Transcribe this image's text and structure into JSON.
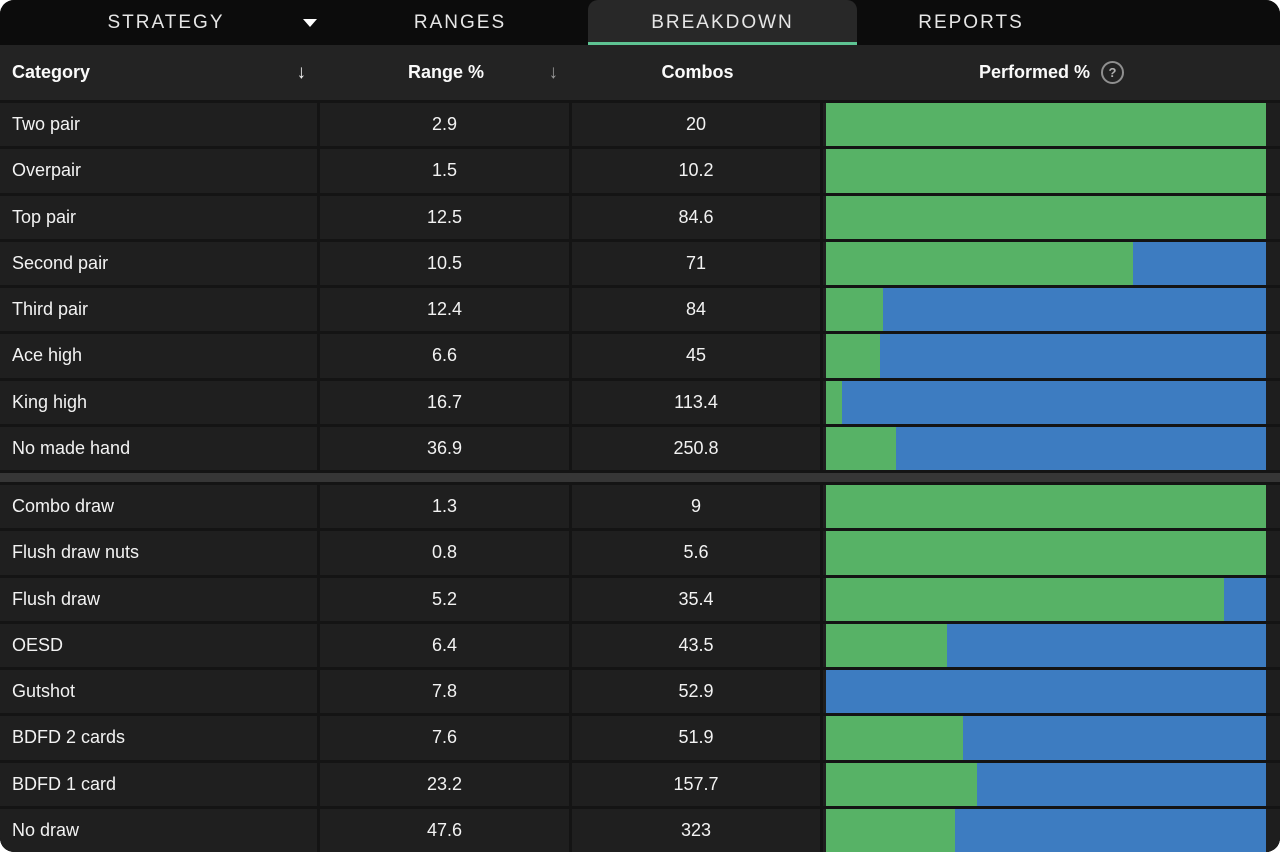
{
  "tab_bar": {
    "tabs": [
      {
        "label": "STRATEGY",
        "has_dropdown": true,
        "active": false
      },
      {
        "label": "RANGES",
        "has_dropdown": false,
        "active": false
      },
      {
        "label": "BREAKDOWN",
        "has_dropdown": false,
        "active": true
      },
      {
        "label": "REPORTS",
        "has_dropdown": false,
        "active": false
      }
    ]
  },
  "table": {
    "headers": {
      "category": "Category",
      "range": "Range %",
      "combos": "Combos",
      "performed": "Performed %",
      "category_sort_icon": "↓",
      "range_sort_icon": "↓",
      "help_icon": "?"
    },
    "sections": [
      {
        "rows": [
          {
            "category": "Two pair",
            "range_pct": "2.9",
            "combos": "20",
            "performed_green_pct": 100
          },
          {
            "category": "Overpair",
            "range_pct": "1.5",
            "combos": "10.2",
            "performed_green_pct": 100
          },
          {
            "category": "Top pair",
            "range_pct": "12.5",
            "combos": "84.6",
            "performed_green_pct": 100
          },
          {
            "category": "Second pair",
            "range_pct": "10.5",
            "combos": "71",
            "performed_green_pct": 69.7
          },
          {
            "category": "Third pair",
            "range_pct": "12.4",
            "combos": "84",
            "performed_green_pct": 12.9
          },
          {
            "category": "Ace high",
            "range_pct": "6.6",
            "combos": "45",
            "performed_green_pct": 12.2
          },
          {
            "category": "King high",
            "range_pct": "16.7",
            "combos": "113.4",
            "performed_green_pct": 3.6
          },
          {
            "category": "No made hand",
            "range_pct": "36.9",
            "combos": "250.8",
            "performed_green_pct": 16
          }
        ]
      },
      {
        "rows": [
          {
            "category": "Combo draw",
            "range_pct": "1.3",
            "combos": "9",
            "performed_green_pct": 100
          },
          {
            "category": "Flush draw nuts",
            "range_pct": "0.8",
            "combos": "5.6",
            "performed_green_pct": 100
          },
          {
            "category": "Flush draw",
            "range_pct": "5.2",
            "combos": "35.4",
            "performed_green_pct": 90.5
          },
          {
            "category": "OESD",
            "range_pct": "6.4",
            "combos": "43.5",
            "performed_green_pct": 27.4
          },
          {
            "category": "Gutshot",
            "range_pct": "7.8",
            "combos": "52.9",
            "performed_green_pct": 0
          },
          {
            "category": "BDFD 2 cards",
            "range_pct": "7.6",
            "combos": "51.9",
            "performed_green_pct": 31.2
          },
          {
            "category": "BDFD 1 card",
            "range_pct": "23.2",
            "combos": "157.7",
            "performed_green_pct": 34.4
          },
          {
            "category": "No draw",
            "range_pct": "47.6",
            "combos": "323",
            "performed_green_pct": 29.4
          }
        ]
      }
    ]
  },
  "colors": {
    "performed_green": "#57b266",
    "performed_blue": "#3d7cc1",
    "active_tab_underline": "#5ec493"
  }
}
